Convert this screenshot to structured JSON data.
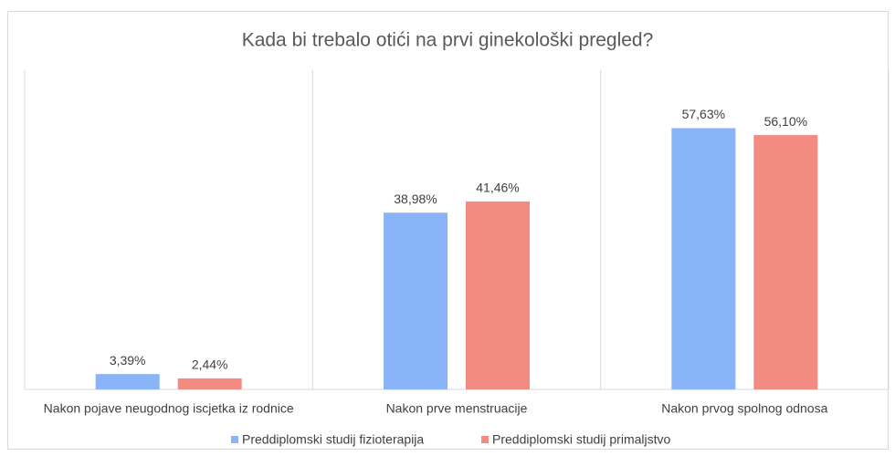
{
  "chart_data": {
    "type": "bar",
    "title": "Kada bi trebalo otići na prvi ginekološki pregled?",
    "categories": [
      "Nakon pojave neugodnog iscjetka iz rodnice",
      "Nakon prve menstruacije",
      "Nakon prvog spolnog odnosa"
    ],
    "series": [
      {
        "name": "Preddiplomski studij fizioterapija",
        "color": "#8ab4f8",
        "values": [
          3.39,
          38.98,
          57.63
        ],
        "value_labels": [
          "3,39%",
          "38,98%",
          "57,63%"
        ]
      },
      {
        "name": "Preddiplomski studij primaljstvo",
        "color": "#f28b82",
        "values": [
          2.44,
          41.46,
          56.1
        ],
        "value_labels": [
          "2,44%",
          "41,46%",
          "56,10%"
        ]
      }
    ],
    "ylim": [
      0,
      70
    ],
    "legend": "bottom"
  }
}
